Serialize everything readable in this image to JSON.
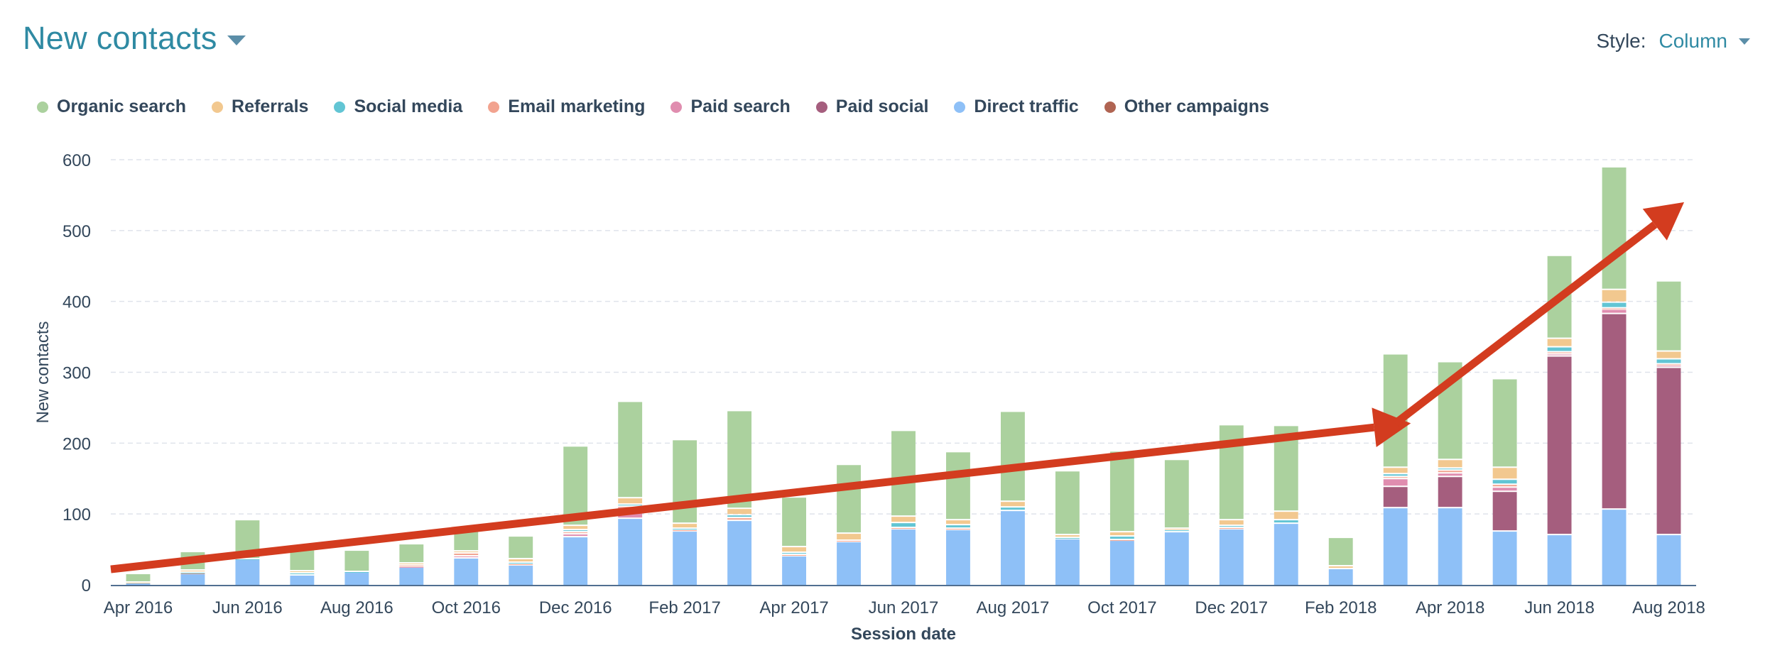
{
  "header": {
    "title": "New contacts"
  },
  "style_picker": {
    "label": "Style:",
    "value": "Column"
  },
  "colors": {
    "organic": "#abd19e",
    "referrals": "#f2c88f",
    "social": "#62c5d4",
    "email": "#f2a38f",
    "paidsearch": "#e08daf",
    "paidsocial": "#a55e7e",
    "direct": "#8ec0f7",
    "other": "#b06452",
    "trend": "#d33c1f"
  },
  "chart_data": {
    "type": "bar",
    "stacked": true,
    "xlabel": "Session date",
    "ylabel": "New contacts",
    "ylim": [
      0,
      600
    ],
    "yticks": [
      0,
      100,
      200,
      300,
      400,
      500,
      600
    ],
    "grid": true,
    "legend_position": "top-left",
    "categories": [
      "Apr 2016",
      "May 2016",
      "Jun 2016",
      "Jul 2016",
      "Aug 2016",
      "Sep 2016",
      "Oct 2016",
      "Nov 2016",
      "Dec 2016",
      "Jan 2017",
      "Feb 2017",
      "Mar 2017",
      "Apr 2017",
      "May 2017",
      "Jun 2017",
      "Jul 2017",
      "Aug 2017",
      "Sep 2017",
      "Oct 2017",
      "Nov 2017",
      "Dec 2017",
      "Jan 2018",
      "Feb 2018",
      "Mar 2018",
      "Apr 2018",
      "May 2018",
      "Jun 2018",
      "Jul 2018",
      "Aug 2018"
    ],
    "tick_labels": [
      "Apr 2016",
      "",
      "Jun 2016",
      "",
      "Aug 2016",
      "",
      "Oct 2016",
      "",
      "Dec 2016",
      "",
      "Feb 2017",
      "",
      "Apr 2017",
      "",
      "Jun 2017",
      "",
      "Aug 2017",
      "",
      "Oct 2017",
      "",
      "Dec 2017",
      "",
      "Feb 2018",
      "",
      "Apr 2018",
      "",
      "Jun 2018",
      "",
      "Aug 2018"
    ],
    "series": [
      {
        "name": "Direct traffic",
        "color_key": "direct",
        "values": [
          2,
          15,
          35,
          13,
          17,
          24,
          37,
          27,
          67,
          93,
          75,
          90,
          40,
          60,
          78,
          77,
          104,
          64,
          62,
          74,
          78,
          86,
          22,
          108,
          108,
          75,
          70,
          106,
          70
        ]
      },
      {
        "name": "Paid social",
        "color_key": "paidsocial",
        "values": [
          0,
          0,
          0,
          0,
          0,
          0,
          0,
          0,
          0,
          0,
          0,
          0,
          0,
          0,
          0,
          0,
          0,
          0,
          0,
          0,
          0,
          0,
          0,
          30,
          44,
          56,
          252,
          276,
          236
        ]
      },
      {
        "name": "Paid search",
        "color_key": "paidsearch",
        "values": [
          0,
          0,
          0,
          0,
          0,
          1,
          3,
          0,
          4,
          16,
          0,
          0,
          0,
          0,
          0,
          0,
          0,
          0,
          0,
          0,
          0,
          0,
          0,
          11,
          5,
          6,
          3,
          6,
          3
        ]
      },
      {
        "name": "Email marketing",
        "color_key": "email",
        "values": [
          0,
          1,
          0,
          0,
          0,
          2,
          4,
          2,
          3,
          1,
          2,
          4,
          2,
          2,
          2,
          2,
          0,
          0,
          1,
          0,
          2,
          0,
          0,
          3,
          4,
          4,
          3,
          2,
          2
        ]
      },
      {
        "name": "Social media",
        "color_key": "social",
        "values": [
          0,
          1,
          1,
          3,
          1,
          0,
          0,
          2,
          3,
          3,
          2,
          4,
          3,
          0,
          7,
          5,
          5,
          2,
          5,
          3,
          3,
          5,
          0,
          4,
          3,
          7,
          7,
          8,
          7
        ]
      },
      {
        "name": "Referrals",
        "color_key": "referrals",
        "values": [
          1,
          3,
          0,
          3,
          0,
          3,
          3,
          5,
          6,
          9,
          7,
          9,
          8,
          10,
          9,
          7,
          8,
          4,
          6,
          2,
          8,
          12,
          4,
          9,
          12,
          17,
          12,
          18,
          11
        ]
      },
      {
        "name": "Organic search",
        "color_key": "organic",
        "values": [
          12,
          26,
          55,
          36,
          30,
          27,
          32,
          32,
          112,
          136,
          118,
          138,
          70,
          97,
          121,
          96,
          127,
          90,
          114,
          97,
          134,
          121,
          40,
          160,
          138,
          125,
          117,
          173,
          99
        ]
      },
      {
        "name": "Other campaigns",
        "color_key": "other",
        "values": [
          0,
          0,
          0,
          0,
          0,
          0,
          0,
          0,
          0,
          0,
          0,
          0,
          0,
          0,
          0,
          0,
          0,
          0,
          0,
          0,
          0,
          0,
          0,
          0,
          0,
          0,
          0,
          0,
          0
        ]
      }
    ],
    "legend_order": [
      "Organic search",
      "Referrals",
      "Social media",
      "Email marketing",
      "Paid search",
      "Paid social",
      "Direct traffic",
      "Other campaigns"
    ],
    "annotations": [
      {
        "type": "arrow",
        "from": [
          "Apr 2016",
          22
        ],
        "to": [
          "Mar 2018",
          228
        ]
      },
      {
        "type": "arrow",
        "from": [
          "Mar 2018",
          228
        ],
        "to": [
          "Aug 2018",
          540
        ]
      }
    ]
  }
}
